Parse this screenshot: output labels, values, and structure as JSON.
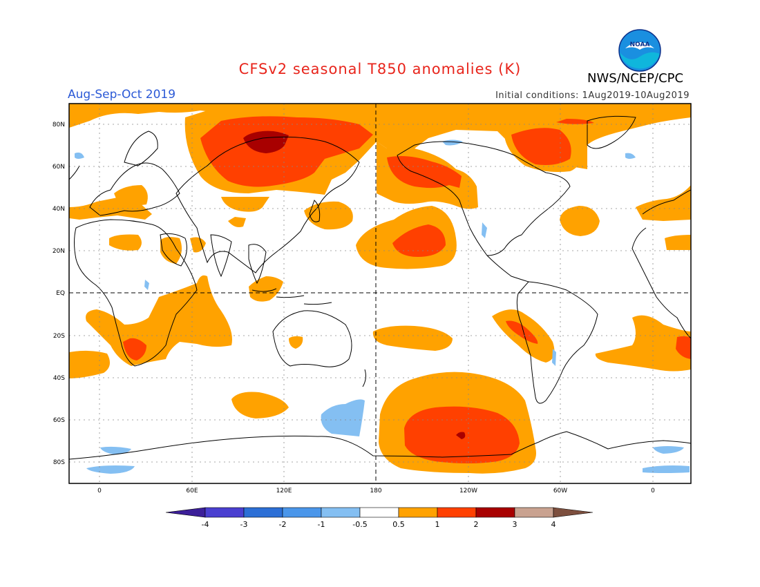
{
  "header": {
    "title": "CFSv2 seasonal T850 anomalies (K)",
    "season": "Aug-Sep-Oct 2019",
    "initial_conditions": "Initial conditions: 1Aug2019-10Aug2019",
    "agency": "NWS/NCEP/CPC",
    "logo_text": "NOAA"
  },
  "map": {
    "lat_labels": [
      "80N",
      "60N",
      "40N",
      "20N",
      "EQ",
      "20S",
      "40S",
      "60S",
      "80S"
    ],
    "lon_labels": [
      "0",
      "60E",
      "120E",
      "180",
      "120W",
      "60W",
      "0"
    ],
    "dashed_reference_lines": [
      "EQ",
      "180"
    ]
  },
  "colorbar": {
    "labels": [
      "-4",
      "-3",
      "-2",
      "-1",
      "-0.5",
      "0.5",
      "1",
      "2",
      "3",
      "4"
    ],
    "colors": [
      "#3c1f99",
      "#4a3fd0",
      "#2c6fd6",
      "#4a96ea",
      "#84bff2",
      "#ffffff",
      "#ffa200",
      "#ff4000",
      "#a80000",
      "#c9a290",
      "#7d4f3e"
    ]
  },
  "legend_colors": {
    "anom_05": "#ffa200",
    "anom_1": "#ff4000",
    "anom_2": "#a80000",
    "neg_05": "#84bff2"
  }
}
